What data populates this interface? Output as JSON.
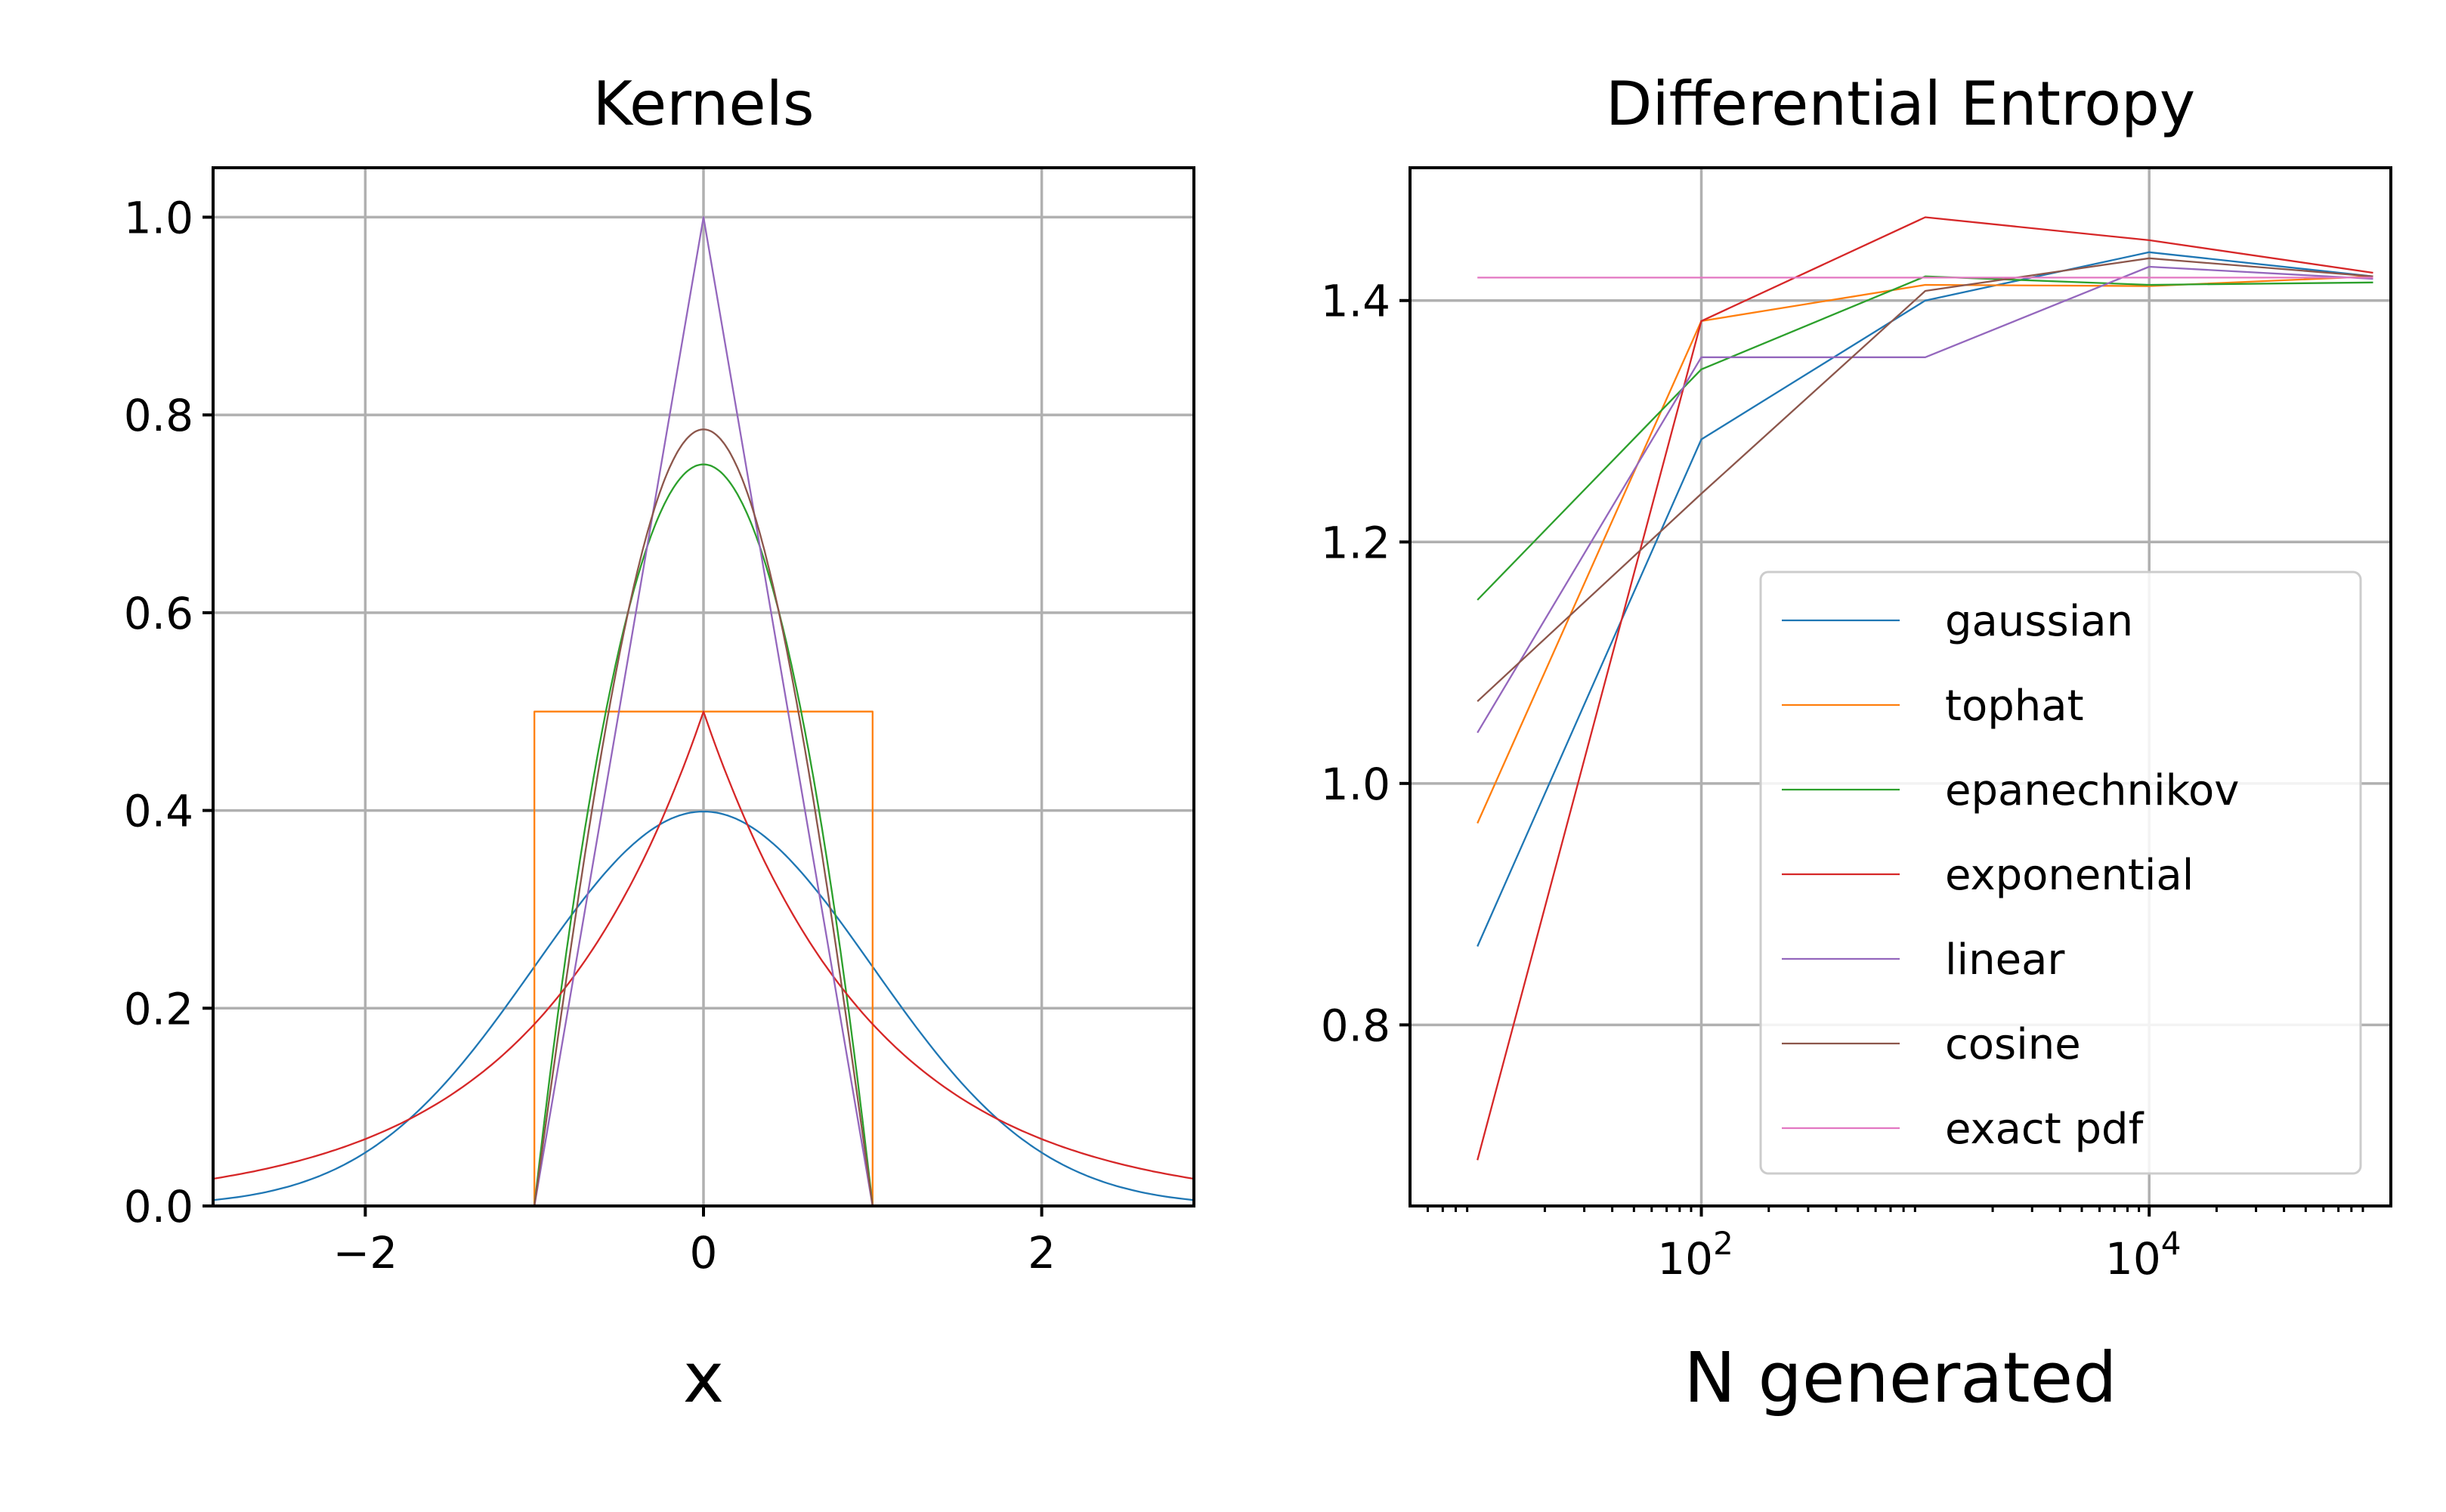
{
  "chart_data": [
    {
      "type": "line",
      "title": "Kernels",
      "xlabel": "x",
      "ylabel": "",
      "xlim": [
        -2.9,
        2.9
      ],
      "ylim": [
        0.0,
        1.05
      ],
      "grid": true,
      "xticks": [
        -2,
        0,
        2
      ],
      "xtick_labels": [
        "−2",
        "0",
        "2"
      ],
      "yticks": [
        0.0,
        0.2,
        0.4,
        0.6,
        0.8,
        1.0
      ],
      "ytick_labels": [
        "0.0",
        "0.2",
        "0.4",
        "0.6",
        "0.8",
        "1.0"
      ],
      "series": [
        {
          "key": "gaussian",
          "color": "#1f77b4",
          "x": [
            -2.9,
            -2.5,
            -2.0,
            -1.5,
            -1.0,
            -0.5,
            0.0,
            0.5,
            1.0,
            1.5,
            2.0,
            2.5,
            2.9
          ],
          "y": [
            0.006,
            0.018,
            0.054,
            0.13,
            0.242,
            0.352,
            0.399,
            0.352,
            0.242,
            0.13,
            0.054,
            0.018,
            0.006
          ]
        },
        {
          "key": "tophat",
          "color": "#ff7f0e",
          "x": [
            -1.0,
            -1.0,
            1.0,
            1.0
          ],
          "y": [
            0.0,
            0.5,
            0.5,
            0.0
          ]
        },
        {
          "key": "epanechnikov",
          "color": "#2ca02c",
          "x": [
            -1.0,
            -0.8,
            -0.6,
            -0.4,
            -0.2,
            0.0,
            0.2,
            0.4,
            0.6,
            0.8,
            1.0
          ],
          "y": [
            0.0,
            0.27,
            0.48,
            0.63,
            0.72,
            0.75,
            0.72,
            0.63,
            0.48,
            0.27,
            0.0
          ]
        },
        {
          "key": "exponential",
          "color": "#d62728",
          "x": [
            -2.9,
            -2.5,
            -2.0,
            -1.5,
            -1.0,
            -0.5,
            0.0,
            0.5,
            1.0,
            1.5,
            2.0,
            2.5,
            2.9
          ],
          "y": [
            0.028,
            0.041,
            0.068,
            0.112,
            0.184,
            0.303,
            0.5,
            0.303,
            0.184,
            0.112,
            0.068,
            0.041,
            0.028
          ]
        },
        {
          "key": "linear",
          "color": "#9467bd",
          "x": [
            -1.0,
            0.0,
            1.0
          ],
          "y": [
            0.0,
            1.0,
            0.0
          ]
        },
        {
          "key": "cosine",
          "color": "#8c564b",
          "x": [
            -1.0,
            -0.8,
            -0.6,
            -0.4,
            -0.2,
            0.0,
            0.2,
            0.4,
            0.6,
            0.8,
            1.0
          ],
          "y": [
            0.0,
            0.243,
            0.462,
            0.635,
            0.747,
            0.785,
            0.747,
            0.635,
            0.462,
            0.243,
            0.0
          ]
        }
      ]
    },
    {
      "type": "line",
      "title": "Differential Entropy",
      "xlabel": "N generated",
      "ylabel": "",
      "xscale": "log",
      "xlim": [
        5,
        120000
      ],
      "ylim": [
        0.65,
        1.51
      ],
      "grid": true,
      "xticks": [
        100,
        10000
      ],
      "xtick_labels": [
        {
          "base": "10",
          "exp": "2"
        },
        {
          "base": "10",
          "exp": "4"
        }
      ],
      "yticks": [
        0.8,
        1.0,
        1.2,
        1.4
      ],
      "ytick_labels": [
        "0.8",
        "1.0",
        "1.2",
        "1.4"
      ],
      "legend_position": "lower-right",
      "x": [
        10,
        100,
        1000,
        10000,
        100000
      ],
      "series": [
        {
          "name": "gaussian",
          "color": "#1f77b4",
          "values": [
            0.865,
            1.285,
            1.4,
            1.44,
            1.42
          ]
        },
        {
          "name": "tophat",
          "color": "#ff7f0e",
          "values": [
            0.967,
            1.383,
            1.413,
            1.412,
            1.42
          ]
        },
        {
          "name": "epanechnikov",
          "color": "#2ca02c",
          "values": [
            1.152,
            1.343,
            1.42,
            1.413,
            1.415
          ]
        },
        {
          "name": "exponential",
          "color": "#d62728",
          "values": [
            0.688,
            1.383,
            1.469,
            1.45,
            1.423
          ]
        },
        {
          "name": "linear",
          "color": "#9467bd",
          "values": [
            1.042,
            1.353,
            1.353,
            1.428,
            1.418
          ]
        },
        {
          "name": "cosine",
          "color": "#8c564b",
          "values": [
            1.068,
            1.24,
            1.408,
            1.435,
            1.42
          ]
        },
        {
          "name": "exact pdf",
          "color": "#e377c2",
          "values": [
            1.419,
            1.419,
            1.419,
            1.419,
            1.419
          ]
        }
      ]
    }
  ]
}
